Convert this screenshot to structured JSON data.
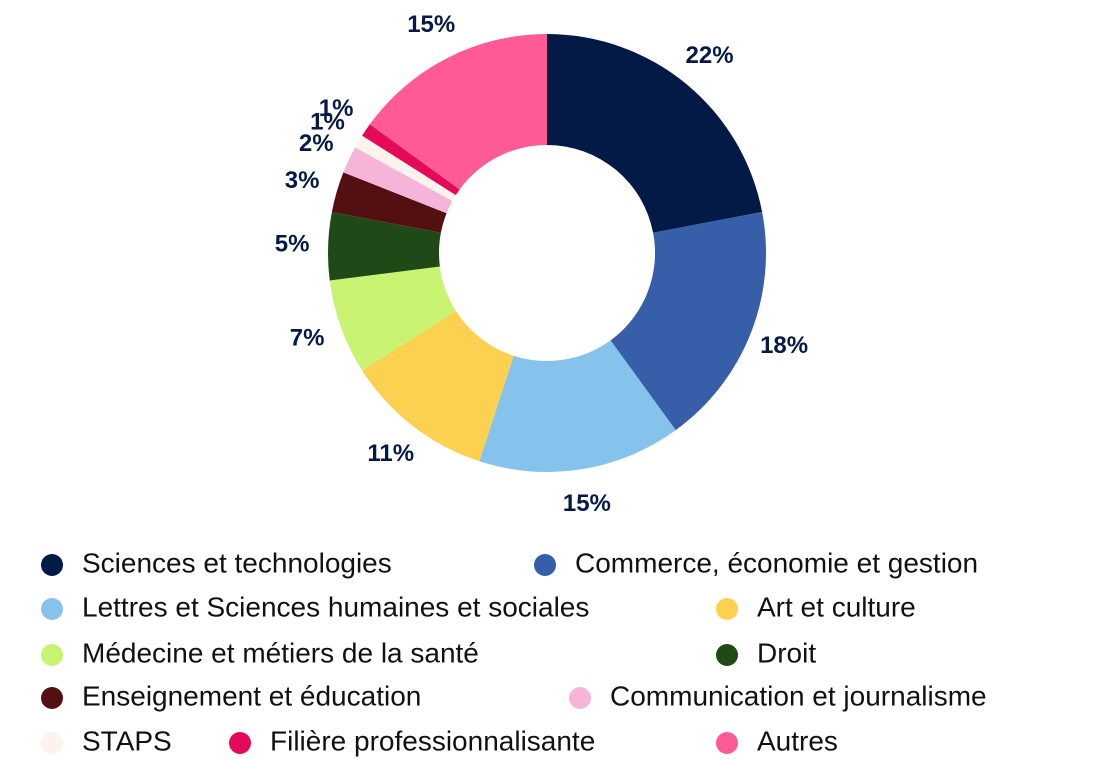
{
  "chart_data": {
    "type": "donut",
    "categories": [
      "Sciences et technologies",
      "Commerce, économie et gestion",
      "Lettres et Sciences humaines et sociales",
      "Art et culture",
      "Médecine et métiers de la santé",
      "Droit",
      "Enseignement et éducation",
      "Communication et journalisme",
      "STAPS",
      "Filière professionnalisante",
      "Autres"
    ],
    "values": [
      22,
      18,
      15,
      11,
      7,
      5,
      3,
      2,
      1,
      1,
      15
    ],
    "value_labels": [
      "22%",
      "18%",
      "15%",
      "11%",
      "7%",
      "5%",
      "3%",
      "2%",
      "1%",
      "1%",
      "15%"
    ],
    "colors": [
      "#021a45",
      "#365ea9",
      "#86c3ec",
      "#fcd14f",
      "#c9f472",
      "#1f4a17",
      "#540f13",
      "#f5b4d8",
      "#fdf2ec",
      "#e5095a",
      "#fe5a96"
    ],
    "legend": "bottom"
  }
}
